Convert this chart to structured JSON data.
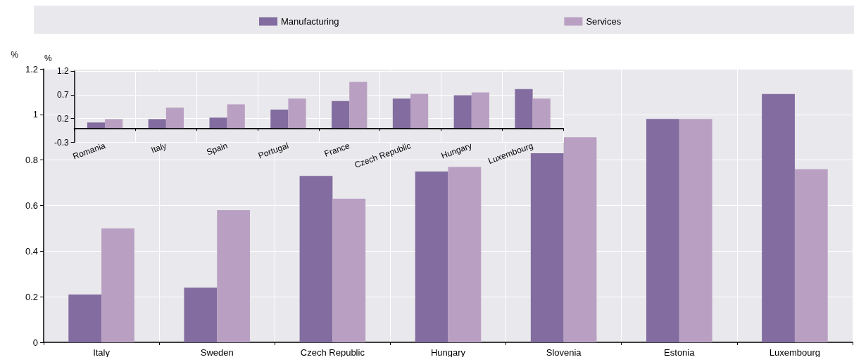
{
  "chart_data": [
    {
      "type": "bar",
      "categories": [
        "Italy",
        "Sweden",
        "Czech Republic",
        "Hungary",
        "Slovenia",
        "Estonia",
        "Luxembourg"
      ],
      "ylabel": "%",
      "ylim": [
        0,
        1.2
      ],
      "yticks": [
        0,
        0.2,
        0.4,
        0.6,
        0.8,
        1,
        1.2
      ],
      "grid": true,
      "legend": "top",
      "series": [
        {
          "name": "Manufacturing",
          "color": "#826ca0",
          "values": [
            0.21,
            0.24,
            0.73,
            0.75,
            0.83,
            0.98,
            1.09
          ]
        },
        {
          "name": "Services",
          "color": "#b9a0c2",
          "values": [
            0.5,
            0.58,
            0.63,
            0.77,
            0.9,
            0.98,
            0.76
          ]
        }
      ]
    },
    {
      "type": "bar",
      "categories": [
        "Romania",
        "Italy",
        "Spain",
        "Portugal",
        "France",
        "Czech Republic",
        "Hungary",
        "Luxembourg"
      ],
      "ylabel": "%",
      "ylim": [
        -0.3,
        1.2
      ],
      "yticks": [
        -0.3,
        0.2,
        0.7,
        1.2
      ],
      "grid": true,
      "legend": false,
      "series": [
        {
          "color": "#826ca0",
          "values": [
            0.12,
            0.19,
            0.22,
            0.39,
            0.57,
            0.62,
            0.69,
            0.82
          ]
        },
        {
          "color": "#b9a0c2",
          "values": [
            0.19,
            0.43,
            0.5,
            0.62,
            0.97,
            0.72,
            0.75,
            0.62
          ]
        }
      ]
    }
  ]
}
